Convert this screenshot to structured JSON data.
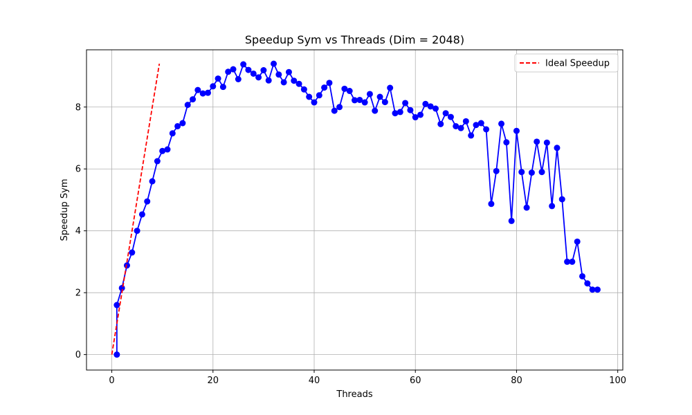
{
  "chart_data": {
    "type": "line",
    "title": "Speedup Sym vs Threads (Dim = 2048)",
    "xlabel": "Threads",
    "ylabel": "Speedup Sym",
    "xlim": [
      -5,
      101
    ],
    "ylim": [
      -0.5,
      9.85
    ],
    "xticks": [
      0,
      20,
      40,
      60,
      80,
      100
    ],
    "yticks": [
      0,
      2,
      4,
      6,
      8
    ],
    "grid": true,
    "legend_position": "top-right",
    "series": [
      {
        "name": "",
        "color": "#0000ff",
        "marker": "circle",
        "x": [
          1,
          1,
          2,
          3,
          4,
          5,
          6,
          7,
          8,
          9,
          10,
          11,
          12,
          13,
          14,
          15,
          16,
          17,
          18,
          19,
          20,
          21,
          22,
          23,
          24,
          25,
          26,
          27,
          28,
          29,
          30,
          31,
          32,
          33,
          34,
          35,
          36,
          37,
          38,
          39,
          40,
          41,
          42,
          43,
          44,
          45,
          46,
          47,
          48,
          49,
          50,
          51,
          52,
          53,
          54,
          55,
          56,
          57,
          58,
          59,
          60,
          61,
          62,
          63,
          64,
          65,
          66,
          67,
          68,
          69,
          70,
          71,
          72,
          73,
          74,
          75,
          76,
          77,
          78,
          79,
          80,
          81,
          82,
          83,
          84,
          85,
          86,
          87,
          88,
          89,
          90,
          91,
          92,
          93,
          94,
          95,
          96
        ],
        "y": [
          0.0,
          1.6,
          2.15,
          2.88,
          3.3,
          4.0,
          4.53,
          4.95,
          5.6,
          6.25,
          6.58,
          6.63,
          7.15,
          7.38,
          7.48,
          8.07,
          8.25,
          8.55,
          8.44,
          8.46,
          8.67,
          8.92,
          8.65,
          9.14,
          9.22,
          8.9,
          9.38,
          9.2,
          9.08,
          8.96,
          9.19,
          8.86,
          9.4,
          9.05,
          8.8,
          9.13,
          8.85,
          8.75,
          8.57,
          8.33,
          8.15,
          8.38,
          8.63,
          8.78,
          7.88,
          8.0,
          8.59,
          8.52,
          8.22,
          8.23,
          8.15,
          8.42,
          7.88,
          8.33,
          8.16,
          8.62,
          7.8,
          7.84,
          8.13,
          7.9,
          7.67,
          7.75,
          8.1,
          8.02,
          7.95,
          7.45,
          7.8,
          7.68,
          7.38,
          7.32,
          7.54,
          7.08,
          7.42,
          7.48,
          7.28,
          4.87,
          5.93,
          7.46,
          6.86,
          4.32,
          7.23,
          5.9,
          4.75,
          5.88,
          6.88,
          5.9,
          6.85,
          4.8,
          6.68,
          5.02,
          3.0,
          3.0,
          3.65,
          2.53,
          2.3,
          2.1,
          2.1
        ]
      },
      {
        "name": "Ideal Speedup",
        "color": "#ff0000",
        "style": "dashed",
        "x": [
          0,
          9.4
        ],
        "y": [
          0,
          9.4
        ]
      }
    ]
  }
}
